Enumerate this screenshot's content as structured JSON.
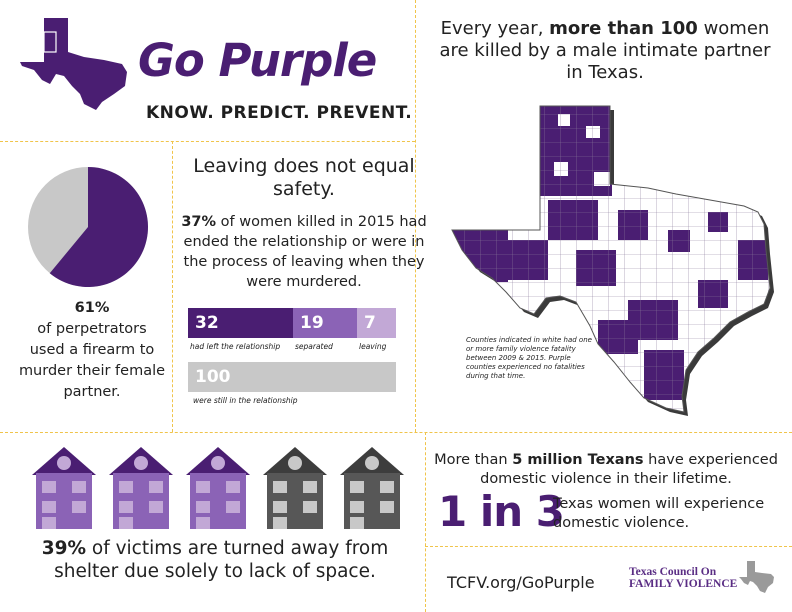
{
  "brand": {
    "title": "Go Purple",
    "tagline": "KNOW. PREDICT. PREVENT."
  },
  "headline": {
    "pre": "Every year, ",
    "bold": "more than 100",
    "post": " women are killed by a male intimate partner in Texas."
  },
  "firearm": {
    "percent": "61%",
    "caption": "of perpetrators used a firearm to murder their female partner.",
    "pie_fraction": 0.61
  },
  "leaving": {
    "title": "Leaving does not equal safety.",
    "stat_bold": "37%",
    "stat_text": " of women killed in 2015 had ended the relationship or were in the process of leaving when they were murdered.",
    "bars": [
      {
        "value": "32",
        "label": "had left the relationship"
      },
      {
        "value": "19",
        "label": "separated"
      },
      {
        "value": "7",
        "label": "leaving"
      }
    ],
    "still_in": {
      "value": "100",
      "label": "were still in the relationship"
    }
  },
  "map": {
    "note": "Counties indicated in white had one or more family violence fatality between 2009 & 2015. Purple counties experienced no fatalities during that time."
  },
  "shelter": {
    "bold": "39%",
    "text": " of victims are turned away from shelter due solely to lack of space.",
    "houses_purple": 3,
    "houses_gray": 2
  },
  "texans": {
    "pre": "More than ",
    "bold": "5 million Texans",
    "post": " have experienced domestic violence in their lifetime."
  },
  "ratio": {
    "big": "1 in 3",
    "text": "Texas women will experience domestic violence."
  },
  "footer": {
    "url": "TCFV.org/GoPurple",
    "council_line1": "Texas Council On",
    "council_line2": "FAMILY VIOLENCE"
  },
  "colors": {
    "purple": "#4a1e72",
    "mid_purple": "#8b63b6",
    "light_purple": "#c2a8d6",
    "gray": "#c8c8c8",
    "dark_gray": "#575757",
    "divider": "#f0c44a"
  }
}
